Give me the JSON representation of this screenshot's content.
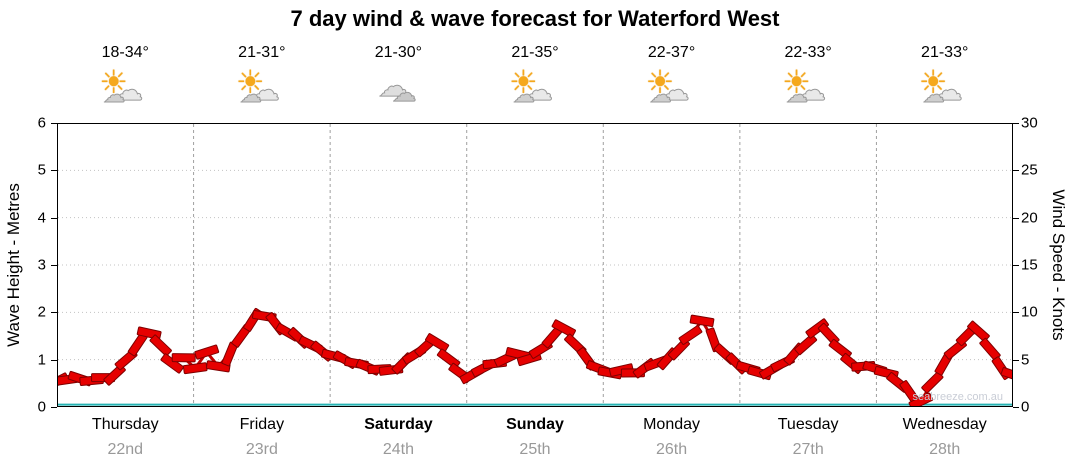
{
  "title": "7 day wind & wave forecast for Waterford West",
  "watermark": "seabreeze.com.au",
  "days": [
    {
      "name": "Thursday",
      "date": "22nd",
      "temp": "18-34°",
      "icon": "sun-cloud",
      "bold": false
    },
    {
      "name": "Friday",
      "date": "23rd",
      "temp": "21-31°",
      "icon": "sun-cloud",
      "bold": false
    },
    {
      "name": "Saturday",
      "date": "24th",
      "temp": "21-30°",
      "icon": "cloudy",
      "bold": true
    },
    {
      "name": "Sunday",
      "date": "25th",
      "temp": "21-35°",
      "icon": "sun-cloud",
      "bold": true
    },
    {
      "name": "Monday",
      "date": "26th",
      "temp": "22-37°",
      "icon": "sun-cloud",
      "bold": false
    },
    {
      "name": "Tuesday",
      "date": "27th",
      "temp": "22-33°",
      "icon": "sun-cloud",
      "bold": false
    },
    {
      "name": "Wednesday",
      "date": "28th",
      "temp": "21-33°",
      "icon": "sun-cloud",
      "bold": false
    }
  ],
  "chart_data": {
    "type": "line",
    "title": "7 day wind & wave forecast for Waterford West",
    "x": {
      "days": [
        "Thursday 22nd",
        "Friday 23rd",
        "Saturday 24th",
        "Sunday 25th",
        "Monday 26th",
        "Tuesday 27th",
        "Wednesday 28th"
      ],
      "points_per_day": 12
    },
    "y_left": {
      "label": "Wave Height - Metres",
      "range": [
        0,
        6
      ],
      "ticks": [
        0,
        1,
        2,
        3,
        4,
        5,
        6
      ]
    },
    "y_right": {
      "label": "Wind Speed - Knots",
      "range": [
        0,
        30
      ],
      "ticks": [
        0,
        5,
        10,
        15,
        20,
        25,
        30
      ]
    },
    "grid": {
      "horizontal_step_metres": 1,
      "vertical_day_separators": true
    },
    "legend": "none",
    "series": [
      {
        "name": "Wind Speed",
        "unit": "knots",
        "axis": "right",
        "color": "#e60000",
        "values": [
          2.7,
          2.9,
          3.0,
          2.8,
          3.1,
          3.4,
          5.0,
          6.6,
          7.8,
          6.5,
          4.6,
          5.2,
          4.1,
          5.8,
          4.3,
          5.6,
          7.5,
          9.2,
          9.6,
          8.8,
          7.9,
          7.3,
          6.6,
          5.9,
          5.4,
          5.0,
          4.6,
          4.2,
          4.0,
          3.9,
          4.6,
          5.5,
          6.4,
          6.8,
          5.1,
          3.6,
          3.4,
          4.1,
          4.6,
          5.1,
          5.6,
          5.1,
          6.1,
          7.4,
          8.3,
          6.6,
          5.1,
          4.1,
          3.6,
          3.9,
          3.6,
          4.1,
          4.6,
          5.1,
          6.1,
          7.6,
          9.1,
          7.1,
          5.6,
          4.6,
          4.1,
          3.6,
          3.9,
          4.6,
          5.6,
          6.6,
          8.3,
          7.7,
          6.1,
          4.6,
          4.3,
          4.1,
          3.6,
          2.6,
          1.6,
          0.6,
          2.6,
          4.6,
          6.1,
          7.6,
          8.0,
          6.1,
          4.1,
          3.4
        ]
      },
      {
        "name": "Wave Height",
        "unit": "metres",
        "axis": "left",
        "color": "#27b3b3",
        "constant_value": 0.05
      }
    ]
  }
}
